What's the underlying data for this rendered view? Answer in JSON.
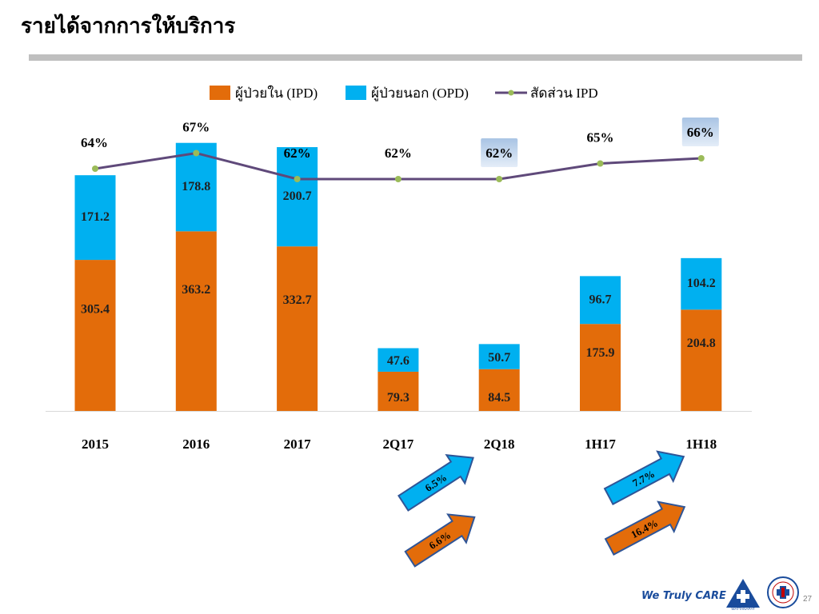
{
  "page": {
    "title": "รายได้จากการให้บริการ",
    "page_number": "27",
    "logo_text": "We Truly CARE",
    "hospital_logo_label": "WATTANAPAT"
  },
  "colors": {
    "ipd": "#e36c0a",
    "opd": "#00b0f0",
    "ratio_line": "#5f497a",
    "ratio_marker": "#9bbb59",
    "arrow_blue": "#00b0f0",
    "arrow_orange": "#e36c0a",
    "arrow_border": "#2f5597"
  },
  "chart_data": {
    "type": "bar",
    "stacked": true,
    "categories": [
      "2015",
      "2016",
      "2017",
      "2Q17",
      "2Q18",
      "1H17",
      "1H18"
    ],
    "series": [
      {
        "name": "ผู้ป่วยใน (IPD)",
        "type": "bar",
        "color": "#e36c0a",
        "values": [
          305.4,
          363.2,
          332.7,
          79.3,
          84.5,
          175.9,
          204.8
        ]
      },
      {
        "name": "ผู้ป่วยนอก (OPD)",
        "type": "bar",
        "color": "#00b0f0",
        "values": [
          171.2,
          178.8,
          200.7,
          47.6,
          50.7,
          96.7,
          104.2
        ]
      },
      {
        "name": "สัดส่วน IPD",
        "type": "line",
        "color": "#5f497a",
        "values": [
          64,
          67,
          62,
          62,
          62,
          65,
          66
        ],
        "labels": [
          "64%",
          "67%",
          "62%",
          "62%",
          "62%",
          "65%",
          "66%"
        ],
        "highlighted": [
          false,
          false,
          false,
          false,
          true,
          false,
          true
        ]
      }
    ],
    "legend_position": "top",
    "grid": false,
    "ylim": [
      0,
      600
    ],
    "growth_annotations": [
      {
        "label": "6.5%",
        "color": "blue",
        "near": "2Q18"
      },
      {
        "label": "6.6%",
        "color": "orange",
        "near": "2Q18"
      },
      {
        "label": "7.7%",
        "color": "blue",
        "near": "1H18"
      },
      {
        "label": "16.4%",
        "color": "orange",
        "near": "1H18"
      }
    ]
  }
}
